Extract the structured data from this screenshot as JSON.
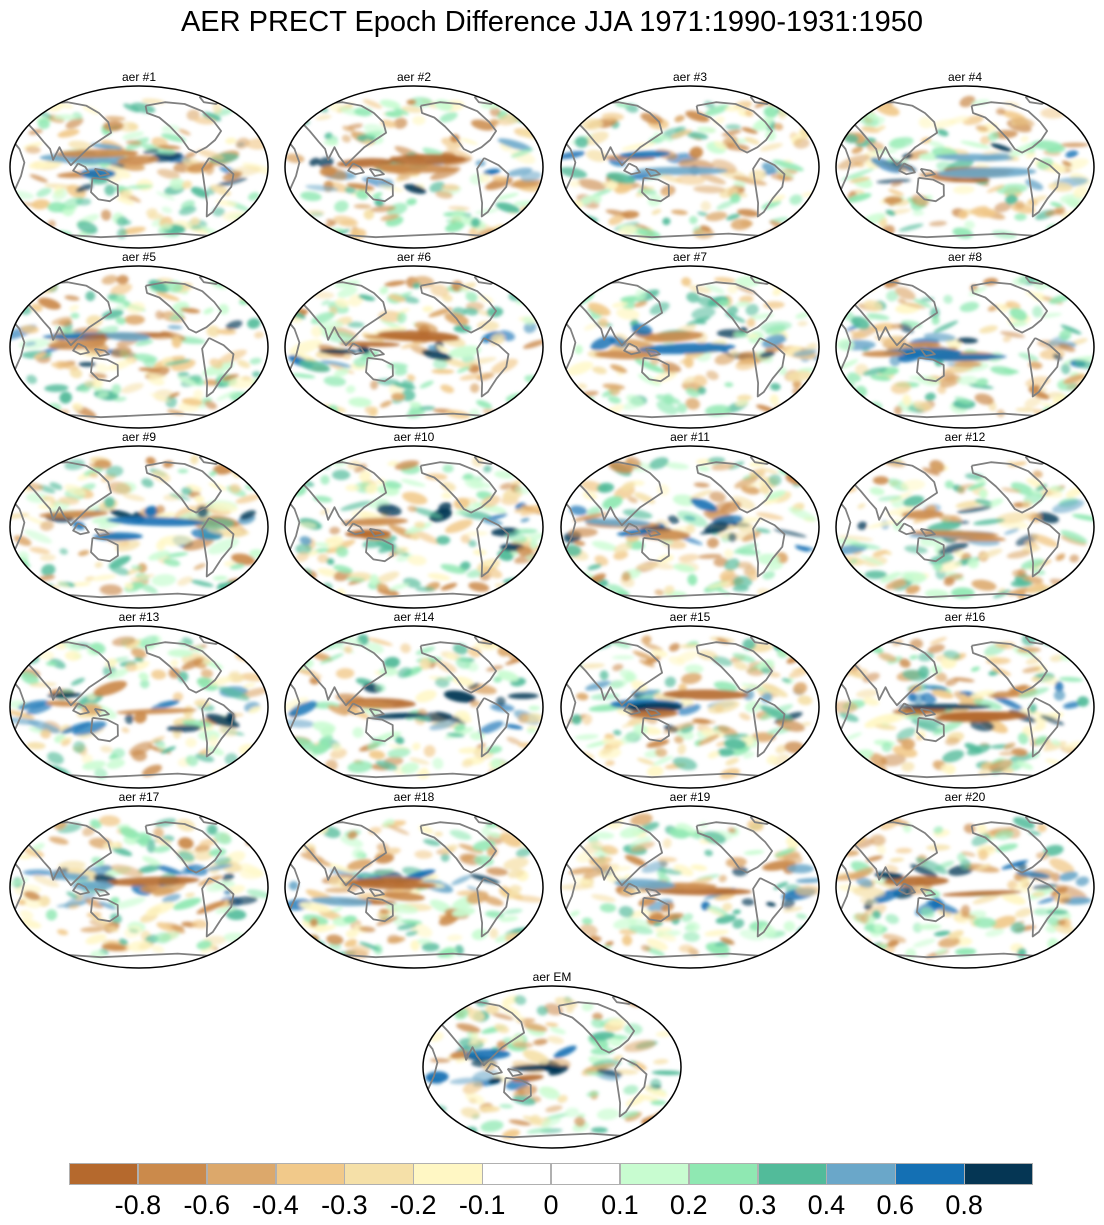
{
  "title": "AER PRECT Epoch Difference JJA 1971:1990-1931:1950",
  "panels": [
    {
      "label": "aer #1"
    },
    {
      "label": "aer #2"
    },
    {
      "label": "aer #3"
    },
    {
      "label": "aer #4"
    },
    {
      "label": "aer #5"
    },
    {
      "label": "aer #6"
    },
    {
      "label": "aer #7"
    },
    {
      "label": "aer #8"
    },
    {
      "label": "aer #9"
    },
    {
      "label": "aer #10"
    },
    {
      "label": "aer #11"
    },
    {
      "label": "aer #12"
    },
    {
      "label": "aer #13"
    },
    {
      "label": "aer #14"
    },
    {
      "label": "aer #15"
    },
    {
      "label": "aer #16"
    },
    {
      "label": "aer #17"
    },
    {
      "label": "aer #18"
    },
    {
      "label": "aer #19"
    },
    {
      "label": "aer #20"
    },
    {
      "label": "aer EM"
    }
  ],
  "colorbar": {
    "colors": [
      "#b5692d",
      "#cb8a4b",
      "#dca86b",
      "#f1c98a",
      "#f5e0a8",
      "#fff7c4",
      "#ffffff",
      "#ffffff",
      "#c8fcd0",
      "#8fe8b2",
      "#52bb9a",
      "#6aa7c9",
      "#1470b4",
      "#053654"
    ],
    "labels": [
      "-0.8",
      "-0.6",
      "-0.4",
      "-0.3",
      "-0.2",
      "-0.1",
      "0",
      "0.1",
      "0.2",
      "0.3",
      "0.4",
      "0.6",
      "0.8"
    ]
  },
  "map_style": {
    "coastline_color": "#808080",
    "border_color": "#000000",
    "ocean_color": "#ffffff"
  }
}
